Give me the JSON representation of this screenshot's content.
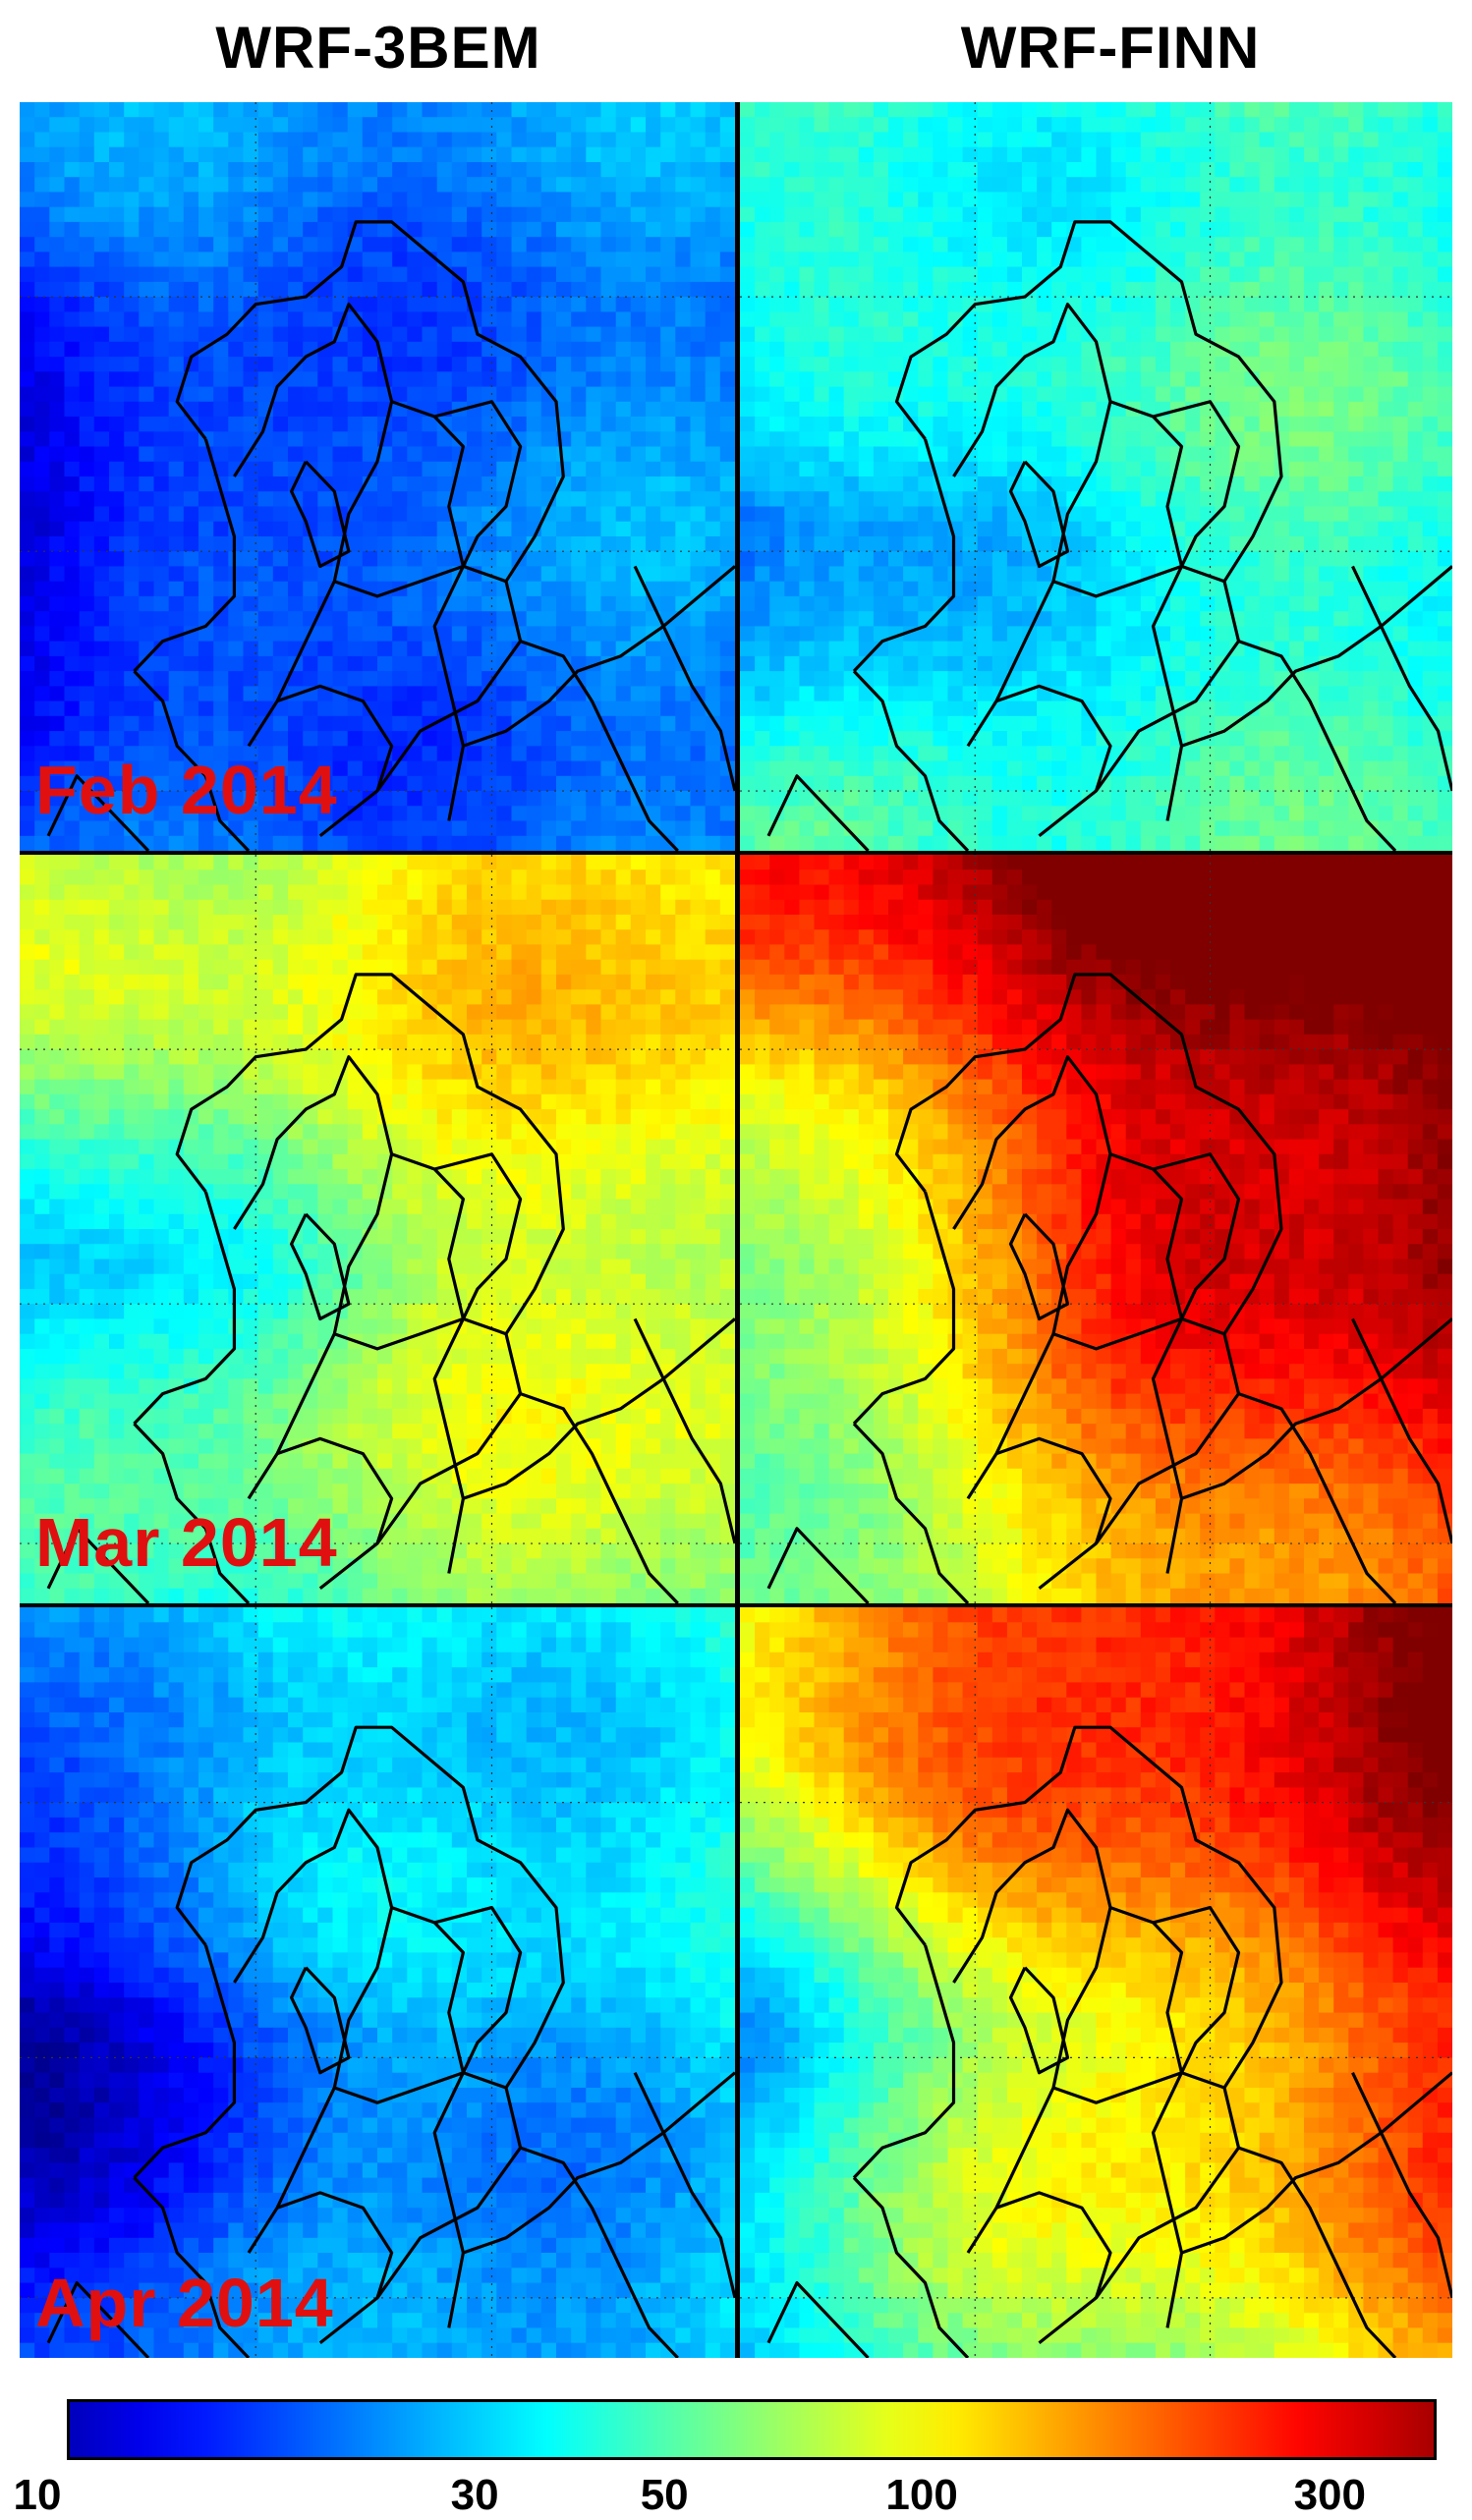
{
  "columns": [
    {
      "title": "WRF-3BEM"
    },
    {
      "title": "WRF-FINN"
    }
  ],
  "rows": [
    {
      "label": "Feb 2014"
    },
    {
      "label": "Mar 2014"
    },
    {
      "label": "Apr 2014"
    }
  ],
  "panels": [
    {
      "id": "p00",
      "level": 0.18,
      "hot": 0.05,
      "tone": "blue"
    },
    {
      "id": "p01",
      "level": 0.38,
      "hot": 0.05,
      "tone": "cyan"
    },
    {
      "id": "p10",
      "level": 0.55,
      "hot": 0.35,
      "tone": "cyan-yellow"
    },
    {
      "id": "p11",
      "level": 0.85,
      "hot": 0.85,
      "tone": "red"
    },
    {
      "id": "p20",
      "level": 0.25,
      "hot": 0.3,
      "tone": "blue"
    },
    {
      "id": "p21",
      "level": 0.7,
      "hot": 0.85,
      "tone": "yellow-red"
    }
  ],
  "colorbar": {
    "ticks": [
      "10",
      "30",
      "50",
      "100",
      "300"
    ],
    "tick_values": [
      10,
      30,
      50,
      100,
      300
    ],
    "min": 10,
    "max": 400,
    "scale": "log",
    "colormap": "jet"
  },
  "colors": {
    "label_red": "#e01010",
    "border": "#000000"
  }
}
